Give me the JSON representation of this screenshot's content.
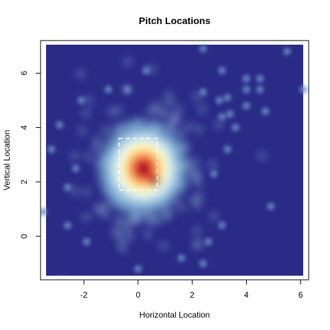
{
  "chart_data": {
    "type": "heatmap",
    "title": "Pitch Locations",
    "xlabel": "Horizontal Location",
    "ylabel": "Vertical Location",
    "xlim": [
      -3.6,
      6.3
    ],
    "ylim": [
      -1.6,
      7.2
    ],
    "xticks": [
      "-2",
      "0",
      "2",
      "4",
      "6"
    ],
    "yticks": [
      "0",
      "2",
      "4",
      "6"
    ],
    "xtick_values": [
      -2,
      0,
      2,
      4,
      6
    ],
    "ytick_values": [
      0,
      2,
      4,
      6
    ],
    "background_color": "#2a2a87",
    "density_peak_color": "#a50026",
    "colormap": [
      "#2a2a87",
      "#4575b4",
      "#abd9e9",
      "#e0f3f8",
      "#ffffbf",
      "#fee090",
      "#fdae61",
      "#f46d43",
      "#d73027",
      "#a50026"
    ],
    "strike_zone": {
      "x": [
        -0.708,
        0.708
      ],
      "y": [
        1.7,
        3.6
      ],
      "style": "dashed",
      "color": "#ffffff"
    },
    "density_cluster": {
      "center": [
        0.2,
        2.5
      ],
      "spread": [
        0.9,
        0.95
      ]
    },
    "outlier_points": [
      [
        2.4,
        6.9
      ],
      [
        5.5,
        6.8
      ],
      [
        6.1,
        5.4
      ],
      [
        0.3,
        6.1
      ],
      [
        3.1,
        6.1
      ],
      [
        -1.1,
        5.4
      ],
      [
        -0.4,
        5.4
      ],
      [
        4.0,
        5.8
      ],
      [
        4.5,
        5.8
      ],
      [
        4.5,
        5.4
      ],
      [
        4.0,
        5.4
      ],
      [
        2.4,
        5.3
      ],
      [
        3.3,
        5.1
      ],
      [
        3.0,
        5.0
      ],
      [
        -2.1,
        5.0
      ],
      [
        4.0,
        4.8
      ],
      [
        4.7,
        4.6
      ],
      [
        3.1,
        4.4
      ],
      [
        3.4,
        4.5
      ],
      [
        -2.9,
        4.1
      ],
      [
        3.6,
        4.0
      ],
      [
        3.3,
        3.2
      ],
      [
        -3.2,
        3.2
      ],
      [
        4.9,
        1.1
      ],
      [
        -3.5,
        0.9
      ],
      [
        -2.6,
        0.4
      ],
      [
        3.1,
        0.4
      ],
      [
        2.6,
        -0.2
      ],
      [
        1.6,
        -0.8
      ],
      [
        -1.9,
        -0.2
      ],
      [
        0.0,
        -1.2
      ],
      [
        2.4,
        -1.0
      ],
      [
        -2.3,
        2.5
      ],
      [
        -2.6,
        1.8
      ],
      [
        2.8,
        2.3
      ]
    ]
  }
}
